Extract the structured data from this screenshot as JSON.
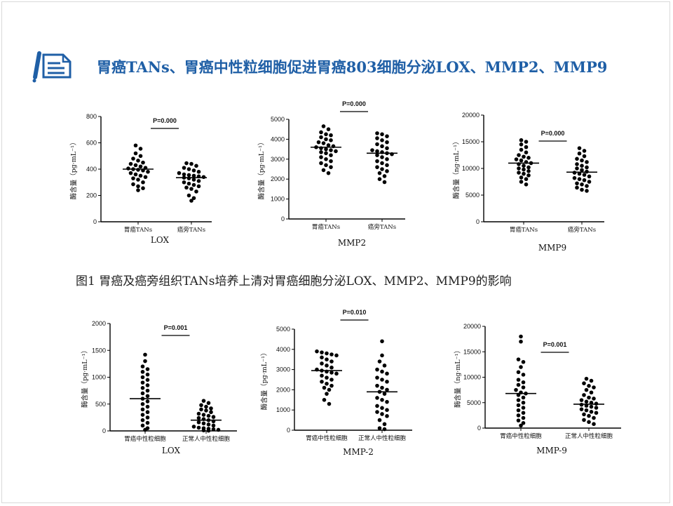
{
  "slide": {
    "title": "胃癌TANs、胃癌中性粒细胞促进胃癌803细胞分泌LOX、MMP2、MMP9",
    "caption": "图1 胃癌及癌旁组织TANs培养上清对胃癌细胞分泌LOX、MMP2、MMP9的影响",
    "icon": "note-edit-icon",
    "accent_color": "#1f5fa6"
  },
  "chart_data": [
    {
      "type": "scatter",
      "name": "LOX",
      "ylabel": "酶含量（pg·mL⁻¹）",
      "ylim": [
        0,
        800
      ],
      "yticks": [
        0,
        200,
        400,
        600,
        800
      ],
      "categories": [
        "胃癌TANs",
        "癌旁TANs"
      ],
      "pvalue": "P=0.000",
      "medians": [
        400,
        335
      ],
      "series": [
        {
          "values": [
            580,
            555,
            520,
            500,
            480,
            465,
            450,
            440,
            430,
            420,
            410,
            405,
            400,
            395,
            390,
            380,
            370,
            360,
            350,
            340,
            330,
            320,
            300,
            285,
            270,
            255,
            240
          ]
        },
        {
          "values": [
            445,
            440,
            425,
            410,
            400,
            390,
            380,
            370,
            360,
            355,
            350,
            345,
            340,
            335,
            330,
            320,
            310,
            300,
            290,
            280,
            270,
            260,
            250,
            230,
            200,
            180,
            160
          ]
        }
      ]
    },
    {
      "type": "scatter",
      "name": "MMP2",
      "ylabel": "酶含量（pg·mL⁻¹）",
      "ylim": [
        0,
        5000
      ],
      "yticks": [
        0,
        1000,
        2000,
        3000,
        4000,
        5000
      ],
      "categories": [
        "胃癌TANs",
        "癌旁TANs"
      ],
      "pvalue": "P=0.000",
      "medians": [
        3600,
        3300
      ],
      "series": [
        {
          "values": [
            4650,
            4500,
            4350,
            4250,
            4200,
            4100,
            4000,
            3950,
            3850,
            3800,
            3700,
            3650,
            3600,
            3550,
            3500,
            3450,
            3400,
            3350,
            3300,
            3200,
            3100,
            3000,
            2900,
            2800,
            2700,
            2600,
            2450,
            2300
          ]
        },
        {
          "values": [
            4300,
            4250,
            4150,
            4050,
            3950,
            3850,
            3750,
            3650,
            3550,
            3450,
            3400,
            3350,
            3300,
            3250,
            3200,
            3100,
            3000,
            2900,
            2800,
            2700,
            2600,
            2500,
            2400,
            2300,
            2150,
            2000,
            1850
          ]
        }
      ]
    },
    {
      "type": "scatter",
      "name": "MMP9",
      "ylabel": "酶含量（ng·mL⁻¹）",
      "ylim": [
        0,
        20000
      ],
      "yticks": [
        0,
        5000,
        10000,
        15000,
        20000
      ],
      "categories": [
        "胃癌TANs",
        "癌旁TANs"
      ],
      "pvalue": "P=0.000",
      "medians": [
        11000,
        9300
      ],
      "series": [
        {
          "values": [
            15300,
            15000,
            14500,
            14000,
            13500,
            13000,
            12500,
            12200,
            12000,
            11700,
            11500,
            11200,
            11000,
            10800,
            10500,
            10200,
            10000,
            9800,
            9500,
            9200,
            9000,
            8700,
            8300,
            8000,
            7500,
            7000
          ]
        },
        {
          "values": [
            13800,
            13300,
            12800,
            12300,
            11800,
            11500,
            11200,
            10800,
            10500,
            10200,
            10000,
            9700,
            9400,
            9200,
            9000,
            8800,
            8500,
            8200,
            8000,
            7800,
            7500,
            7200,
            7000,
            6700,
            6400,
            6000,
            5800
          ]
        }
      ]
    },
    {
      "type": "scatter",
      "name": "LOX",
      "ylabel": "酶含量（pg·mL⁻¹）",
      "ylim": [
        0,
        2000
      ],
      "yticks": [
        0,
        500,
        1000,
        1500,
        2000
      ],
      "categories": [
        "胃癌中性粒细胞",
        "正常人中性粒细胞"
      ],
      "pvalue": "P=0.001",
      "medians": [
        600,
        200
      ],
      "series": [
        {
          "values": [
            1420,
            1300,
            1200,
            1150,
            1100,
            1050,
            1000,
            950,
            900,
            850,
            800,
            750,
            700,
            650,
            600,
            550,
            500,
            450,
            400,
            350,
            300,
            250,
            200,
            150,
            100,
            50,
            20
          ]
        },
        {
          "values": [
            560,
            520,
            480,
            450,
            420,
            400,
            380,
            350,
            320,
            300,
            280,
            260,
            240,
            220,
            200,
            180,
            160,
            140,
            120,
            100,
            80,
            60,
            50,
            40,
            30,
            20,
            10,
            5
          ]
        }
      ]
    },
    {
      "type": "scatter",
      "name": "MMP-2",
      "ylabel": "酶含量（pg·mL⁻¹）",
      "ylim": [
        0,
        5000
      ],
      "yticks": [
        0,
        1000,
        2000,
        3000,
        4000,
        5000
      ],
      "categories": [
        "胃癌中性粒细胞",
        "正常人中性粒细胞"
      ],
      "pvalue": "P=0.010",
      "medians": [
        2950,
        1900
      ],
      "series": [
        {
          "values": [
            3900,
            3850,
            3800,
            3750,
            3700,
            3600,
            3500,
            3400,
            3300,
            3200,
            3100,
            3000,
            2950,
            2900,
            2850,
            2800,
            2700,
            2600,
            2500,
            2400,
            2300,
            2200,
            2100,
            2000,
            1800,
            1500,
            1300
          ]
        },
        {
          "values": [
            4400,
            3700,
            3400,
            3200,
            3000,
            2900,
            2800,
            2600,
            2500,
            2400,
            2200,
            2100,
            2000,
            1900,
            1800,
            1600,
            1500,
            1400,
            1200,
            1100,
            1000,
            900,
            800,
            700,
            500,
            300,
            100,
            50
          ]
        }
      ]
    },
    {
      "type": "scatter",
      "name": "MMP-9",
      "ylabel": "酶含量（ng·mL⁻¹）",
      "ylim": [
        0,
        20000
      ],
      "yticks": [
        0,
        5000,
        10000,
        15000,
        20000
      ],
      "categories": [
        "胃癌中性粒细胞",
        "正常人中性粒细胞"
      ],
      "pvalue": "P=0.001",
      "medians": [
        6800,
        4700
      ],
      "series": [
        {
          "values": [
            18000,
            17000,
            13500,
            13000,
            12000,
            11000,
            10500,
            9500,
            9000,
            8500,
            8000,
            7500,
            7000,
            6800,
            6500,
            6000,
            5500,
            5000,
            4500,
            4000,
            3500,
            3000,
            2500,
            2000,
            1500,
            1000,
            500
          ]
        },
        {
          "values": [
            9700,
            9300,
            8800,
            8300,
            8000,
            7500,
            7000,
            6500,
            6000,
            5800,
            5500,
            5200,
            5000,
            4800,
            4600,
            4400,
            4200,
            4000,
            3700,
            3500,
            3200,
            3000,
            2700,
            2400,
            2000,
            1600,
            1200,
            800
          ]
        }
      ]
    }
  ]
}
